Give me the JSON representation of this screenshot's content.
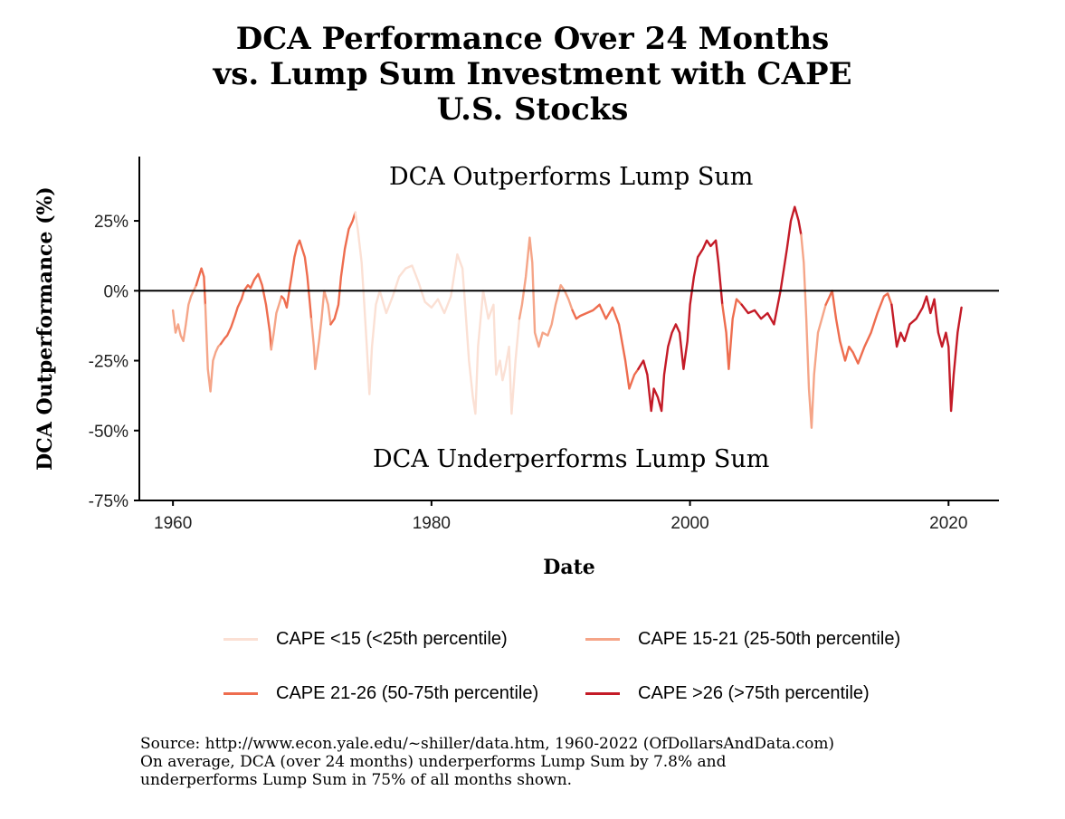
{
  "chart_data": {
    "type": "line",
    "title": [
      "DCA Performance Over 24 Months",
      "vs. Lump Sum Investment with CAPE",
      "U.S. Stocks"
    ],
    "xlabel": "Date",
    "ylabel": "DCA Outperformance (%)",
    "xlim": [
      1957.4,
      2023.9
    ],
    "ylim": [
      -75,
      48
    ],
    "x_ticks": [
      1960,
      1980,
      2000,
      2020
    ],
    "x_tick_labels": [
      "1960",
      "1980",
      "2000",
      "2020"
    ],
    "y_ticks": [
      25,
      0,
      -25,
      -50,
      -75
    ],
    "y_tick_labels": [
      "25%",
      "0%",
      "-25%",
      "-50%",
      "-75%"
    ],
    "reference_line": 0,
    "annotations": [
      {
        "text": "DCA Outperforms Lump Sum",
        "x": 1990.8,
        "y": 38
      },
      {
        "text": "DCA Underperforms Lump Sum",
        "x": 1990.8,
        "y": -63
      }
    ],
    "legend_position": "bottom",
    "series_order": [
      "CAPE <15 (<25th percentile)",
      "CAPE 15-21 (25-50th percentile)",
      "CAPE 21-26 (50-75th percentile)",
      "CAPE >26 (>75th percentile)"
    ],
    "series_colors": [
      "#fbe0d4",
      "#f5a588",
      "#ee6d4f",
      "#c41b27"
    ],
    "segments": [
      {
        "series": 1,
        "points": [
          [
            1960.0,
            -7
          ],
          [
            1960.2,
            -15
          ],
          [
            1960.4,
            -12
          ],
          [
            1960.6,
            -16
          ],
          [
            1960.8,
            -18
          ],
          [
            1961.0,
            -12
          ],
          [
            1961.2,
            -5
          ],
          [
            1961.4,
            -2
          ],
          [
            1961.6,
            0
          ],
          [
            1961.8,
            2
          ]
        ]
      },
      {
        "series": 2,
        "points": [
          [
            1961.8,
            2
          ],
          [
            1962.0,
            5
          ],
          [
            1962.2,
            8
          ],
          [
            1962.4,
            5
          ],
          [
            1962.5,
            -5
          ]
        ]
      },
      {
        "series": 1,
        "points": [
          [
            1962.5,
            -5
          ],
          [
            1962.7,
            -28
          ],
          [
            1962.9,
            -36
          ],
          [
            1963.1,
            -25
          ],
          [
            1963.3,
            -22
          ],
          [
            1963.5,
            -20
          ],
          [
            1963.7,
            -19
          ]
        ]
      },
      {
        "series": 2,
        "points": [
          [
            1963.7,
            -19
          ],
          [
            1964.0,
            -17
          ],
          [
            1964.2,
            -16
          ],
          [
            1964.5,
            -13
          ],
          [
            1964.8,
            -9
          ],
          [
            1965.0,
            -6
          ],
          [
            1965.3,
            -3
          ],
          [
            1965.5,
            0
          ],
          [
            1965.8,
            2
          ],
          [
            1966.0,
            1
          ],
          [
            1966.3,
            4
          ],
          [
            1966.6,
            6
          ],
          [
            1966.9,
            2
          ],
          [
            1967.2,
            -5
          ],
          [
            1967.5,
            -15
          ],
          [
            1967.6,
            -21
          ]
        ]
      },
      {
        "series": 1,
        "points": [
          [
            1967.6,
            -21
          ],
          [
            1967.8,
            -15
          ],
          [
            1968.0,
            -8
          ],
          [
            1968.2,
            -5
          ],
          [
            1968.4,
            -2
          ]
        ]
      },
      {
        "series": 2,
        "points": [
          [
            1968.4,
            -2
          ],
          [
            1968.6,
            -3
          ],
          [
            1968.8,
            -6
          ],
          [
            1969.0,
            0
          ],
          [
            1969.2,
            6
          ],
          [
            1969.4,
            12
          ],
          [
            1969.6,
            16
          ],
          [
            1969.8,
            18
          ],
          [
            1970.0,
            15
          ],
          [
            1970.2,
            12
          ],
          [
            1970.4,
            5
          ],
          [
            1970.6,
            -5
          ],
          [
            1970.7,
            -10
          ]
        ]
      },
      {
        "series": 1,
        "points": [
          [
            1970.7,
            -10
          ],
          [
            1970.9,
            -20
          ],
          [
            1971.0,
            -28
          ],
          [
            1971.1,
            -25
          ],
          [
            1971.3,
            -18
          ],
          [
            1971.5,
            -10
          ],
          [
            1971.7,
            0
          ],
          [
            1972.0,
            -5
          ],
          [
            1972.2,
            -12
          ]
        ]
      },
      {
        "series": 2,
        "points": [
          [
            1972.2,
            -12
          ],
          [
            1972.5,
            -10
          ],
          [
            1972.8,
            -5
          ],
          [
            1973.0,
            5
          ],
          [
            1973.3,
            15
          ],
          [
            1973.6,
            22
          ],
          [
            1973.9,
            25
          ],
          [
            1974.1,
            28
          ]
        ]
      },
      {
        "series": 0,
        "points": [
          [
            1974.1,
            28
          ],
          [
            1974.3,
            22
          ],
          [
            1974.6,
            10
          ],
          [
            1974.8,
            -5
          ],
          [
            1975.0,
            -20
          ],
          [
            1975.2,
            -37
          ],
          [
            1975.4,
            -20
          ],
          [
            1975.7,
            -5
          ],
          [
            1976.0,
            0
          ],
          [
            1976.5,
            -8
          ],
          [
            1977.0,
            -2
          ],
          [
            1977.5,
            5
          ],
          [
            1978.0,
            8
          ],
          [
            1978.5,
            9
          ],
          [
            1979.0,
            3
          ],
          [
            1979.5,
            -4
          ],
          [
            1980.0,
            -6
          ],
          [
            1980.5,
            -3
          ],
          [
            1981.0,
            -8
          ],
          [
            1981.5,
            -2
          ],
          [
            1982.0,
            13
          ],
          [
            1982.4,
            8
          ],
          [
            1982.6,
            -5
          ],
          [
            1982.9,
            -25
          ],
          [
            1983.2,
            -38
          ],
          [
            1983.4,
            -44
          ],
          [
            1983.6,
            -20
          ],
          [
            1984.0,
            0
          ],
          [
            1984.4,
            -10
          ],
          [
            1984.8,
            -5
          ],
          [
            1985.0,
            -30
          ],
          [
            1985.3,
            -25
          ],
          [
            1985.5,
            -32
          ],
          [
            1985.7,
            -28
          ],
          [
            1986.0,
            -20
          ],
          [
            1986.2,
            -44
          ],
          [
            1986.5,
            -25
          ],
          [
            1986.8,
            -10
          ]
        ]
      },
      {
        "series": 1,
        "points": [
          [
            1986.8,
            -10
          ],
          [
            1987.0,
            -5
          ],
          [
            1987.3,
            5
          ],
          [
            1987.6,
            19
          ],
          [
            1987.8,
            10
          ],
          [
            1988.0,
            -15
          ],
          [
            1988.3,
            -20
          ],
          [
            1988.6,
            -15
          ],
          [
            1989.0,
            -16
          ],
          [
            1989.3,
            -12
          ],
          [
            1989.6,
            -5
          ],
          [
            1990.0,
            2
          ],
          [
            1990.3,
            0
          ],
          [
            1990.6,
            -3
          ],
          [
            1990.9,
            -7
          ]
        ]
      },
      {
        "series": 2,
        "points": [
          [
            1990.9,
            -7
          ],
          [
            1991.2,
            -10
          ],
          [
            1991.5,
            -9
          ],
          [
            1992.0,
            -8
          ],
          [
            1992.5,
            -7
          ],
          [
            1993.0,
            -5
          ],
          [
            1993.5,
            -10
          ],
          [
            1994.0,
            -6
          ],
          [
            1994.5,
            -12
          ],
          [
            1995.0,
            -25
          ],
          [
            1995.3,
            -35
          ],
          [
            1995.7,
            -30
          ],
          [
            1996.0,
            -28
          ]
        ]
      },
      {
        "series": 3,
        "points": [
          [
            1996.0,
            -28
          ],
          [
            1996.4,
            -25
          ],
          [
            1996.7,
            -30
          ],
          [
            1997.0,
            -43
          ],
          [
            1997.2,
            -35
          ],
          [
            1997.5,
            -38
          ],
          [
            1997.8,
            -43
          ],
          [
            1998.0,
            -30
          ],
          [
            1998.3,
            -20
          ],
          [
            1998.6,
            -15
          ],
          [
            1998.9,
            -12
          ],
          [
            1999.2,
            -15
          ],
          [
            1999.5,
            -28
          ],
          [
            1999.8,
            -18
          ],
          [
            2000.0,
            -5
          ],
          [
            2000.3,
            5
          ],
          [
            2000.6,
            12
          ],
          [
            2001.0,
            15
          ],
          [
            2001.3,
            18
          ],
          [
            2001.6,
            16
          ],
          [
            2002.0,
            18
          ],
          [
            2002.2,
            10
          ],
          [
            2002.4,
            0
          ],
          [
            2002.5,
            -5
          ]
        ]
      },
      {
        "series": 2,
        "points": [
          [
            2002.5,
            -5
          ],
          [
            2002.8,
            -15
          ],
          [
            2003.0,
            -28
          ],
          [
            2003.3,
            -10
          ],
          [
            2003.6,
            -3
          ],
          [
            2004.0,
            -5
          ]
        ]
      },
      {
        "series": 3,
        "points": [
          [
            2004.0,
            -5
          ],
          [
            2004.5,
            -8
          ],
          [
            2005.0,
            -7
          ],
          [
            2005.5,
            -10
          ],
          [
            2006.0,
            -8
          ],
          [
            2006.5,
            -12
          ],
          [
            2007.0,
            0
          ],
          [
            2007.5,
            15
          ],
          [
            2007.8,
            25
          ],
          [
            2008.1,
            30
          ],
          [
            2008.4,
            25
          ],
          [
            2008.6,
            20
          ]
        ]
      },
      {
        "series": 1,
        "points": [
          [
            2008.6,
            20
          ],
          [
            2008.8,
            10
          ],
          [
            2009.0,
            -10
          ],
          [
            2009.2,
            -35
          ],
          [
            2009.4,
            -49
          ],
          [
            2009.6,
            -30
          ],
          [
            2009.9,
            -15
          ],
          [
            2010.2,
            -10
          ],
          [
            2010.5,
            -5
          ]
        ]
      },
      {
        "series": 2,
        "points": [
          [
            2010.5,
            -5
          ],
          [
            2010.8,
            -2
          ],
          [
            2011.0,
            0
          ],
          [
            2011.3,
            -10
          ],
          [
            2011.6,
            -18
          ],
          [
            2012.0,
            -25
          ],
          [
            2012.3,
            -20
          ],
          [
            2012.6,
            -22
          ],
          [
            2013.0,
            -26
          ],
          [
            2013.5,
            -20
          ],
          [
            2014.0,
            -15
          ],
          [
            2014.5,
            -8
          ],
          [
            2015.0,
            -2
          ],
          [
            2015.3,
            -1
          ],
          [
            2015.6,
            -5
          ]
        ]
      },
      {
        "series": 3,
        "points": [
          [
            2015.6,
            -5
          ],
          [
            2016.0,
            -20
          ],
          [
            2016.3,
            -15
          ],
          [
            2016.6,
            -18
          ],
          [
            2017.0,
            -12
          ],
          [
            2017.5,
            -10
          ],
          [
            2018.0,
            -6
          ],
          [
            2018.3,
            -2
          ],
          [
            2018.6,
            -8
          ],
          [
            2018.9,
            -3
          ],
          [
            2019.2,
            -15
          ],
          [
            2019.5,
            -20
          ],
          [
            2019.8,
            -15
          ],
          [
            2020.0,
            -20
          ],
          [
            2020.2,
            -43
          ],
          [
            2020.4,
            -30
          ],
          [
            2020.7,
            -15
          ],
          [
            2021.0,
            -6
          ]
        ]
      }
    ]
  },
  "legend": {
    "items": [
      {
        "label": "CAPE <15 (<25th percentile)"
      },
      {
        "label": "CAPE 15-21 (25-50th percentile)"
      },
      {
        "label": "CAPE 21-26 (50-75th percentile)"
      },
      {
        "label": "CAPE >26 (>75th percentile)"
      }
    ]
  },
  "footnote": {
    "line1": "Source:  http://www.econ.yale.edu/~shiller/data.htm, 1960-2022 (OfDollarsAndData.com)",
    "line2": "On average, DCA (over 24 months) underperforms Lump Sum by 7.8% and",
    "line3": "underperforms Lump Sum in 75% of all months shown."
  }
}
